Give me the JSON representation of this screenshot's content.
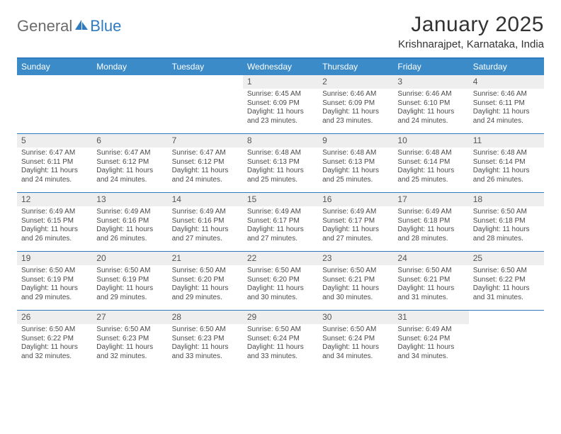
{
  "logo": {
    "part1": "General",
    "part2": "Blue"
  },
  "title": "January 2025",
  "location": "Krishnarajpet, Karnataka, India",
  "colors": {
    "header_bg": "#3b8bc9",
    "header_border": "#2f7bbf",
    "daynum_bg": "#eeeeee",
    "text": "#333333",
    "body_text": "#4a4a4a",
    "logo_gray": "#6b6b6b",
    "logo_blue": "#2f7bbf",
    "background": "#ffffff"
  },
  "day_names": [
    "Sunday",
    "Monday",
    "Tuesday",
    "Wednesday",
    "Thursday",
    "Friday",
    "Saturday"
  ],
  "weeks": [
    [
      null,
      null,
      null,
      {
        "n": "1",
        "sr": "Sunrise: 6:45 AM",
        "ss": "Sunset: 6:09 PM",
        "dl": "Daylight: 11 hours and 23 minutes."
      },
      {
        "n": "2",
        "sr": "Sunrise: 6:46 AM",
        "ss": "Sunset: 6:09 PM",
        "dl": "Daylight: 11 hours and 23 minutes."
      },
      {
        "n": "3",
        "sr": "Sunrise: 6:46 AM",
        "ss": "Sunset: 6:10 PM",
        "dl": "Daylight: 11 hours and 24 minutes."
      },
      {
        "n": "4",
        "sr": "Sunrise: 6:46 AM",
        "ss": "Sunset: 6:11 PM",
        "dl": "Daylight: 11 hours and 24 minutes."
      }
    ],
    [
      {
        "n": "5",
        "sr": "Sunrise: 6:47 AM",
        "ss": "Sunset: 6:11 PM",
        "dl": "Daylight: 11 hours and 24 minutes."
      },
      {
        "n": "6",
        "sr": "Sunrise: 6:47 AM",
        "ss": "Sunset: 6:12 PM",
        "dl": "Daylight: 11 hours and 24 minutes."
      },
      {
        "n": "7",
        "sr": "Sunrise: 6:47 AM",
        "ss": "Sunset: 6:12 PM",
        "dl": "Daylight: 11 hours and 24 minutes."
      },
      {
        "n": "8",
        "sr": "Sunrise: 6:48 AM",
        "ss": "Sunset: 6:13 PM",
        "dl": "Daylight: 11 hours and 25 minutes."
      },
      {
        "n": "9",
        "sr": "Sunrise: 6:48 AM",
        "ss": "Sunset: 6:13 PM",
        "dl": "Daylight: 11 hours and 25 minutes."
      },
      {
        "n": "10",
        "sr": "Sunrise: 6:48 AM",
        "ss": "Sunset: 6:14 PM",
        "dl": "Daylight: 11 hours and 25 minutes."
      },
      {
        "n": "11",
        "sr": "Sunrise: 6:48 AM",
        "ss": "Sunset: 6:14 PM",
        "dl": "Daylight: 11 hours and 26 minutes."
      }
    ],
    [
      {
        "n": "12",
        "sr": "Sunrise: 6:49 AM",
        "ss": "Sunset: 6:15 PM",
        "dl": "Daylight: 11 hours and 26 minutes."
      },
      {
        "n": "13",
        "sr": "Sunrise: 6:49 AM",
        "ss": "Sunset: 6:16 PM",
        "dl": "Daylight: 11 hours and 26 minutes."
      },
      {
        "n": "14",
        "sr": "Sunrise: 6:49 AM",
        "ss": "Sunset: 6:16 PM",
        "dl": "Daylight: 11 hours and 27 minutes."
      },
      {
        "n": "15",
        "sr": "Sunrise: 6:49 AM",
        "ss": "Sunset: 6:17 PM",
        "dl": "Daylight: 11 hours and 27 minutes."
      },
      {
        "n": "16",
        "sr": "Sunrise: 6:49 AM",
        "ss": "Sunset: 6:17 PM",
        "dl": "Daylight: 11 hours and 27 minutes."
      },
      {
        "n": "17",
        "sr": "Sunrise: 6:49 AM",
        "ss": "Sunset: 6:18 PM",
        "dl": "Daylight: 11 hours and 28 minutes."
      },
      {
        "n": "18",
        "sr": "Sunrise: 6:50 AM",
        "ss": "Sunset: 6:18 PM",
        "dl": "Daylight: 11 hours and 28 minutes."
      }
    ],
    [
      {
        "n": "19",
        "sr": "Sunrise: 6:50 AM",
        "ss": "Sunset: 6:19 PM",
        "dl": "Daylight: 11 hours and 29 minutes."
      },
      {
        "n": "20",
        "sr": "Sunrise: 6:50 AM",
        "ss": "Sunset: 6:19 PM",
        "dl": "Daylight: 11 hours and 29 minutes."
      },
      {
        "n": "21",
        "sr": "Sunrise: 6:50 AM",
        "ss": "Sunset: 6:20 PM",
        "dl": "Daylight: 11 hours and 29 minutes."
      },
      {
        "n": "22",
        "sr": "Sunrise: 6:50 AM",
        "ss": "Sunset: 6:20 PM",
        "dl": "Daylight: 11 hours and 30 minutes."
      },
      {
        "n": "23",
        "sr": "Sunrise: 6:50 AM",
        "ss": "Sunset: 6:21 PM",
        "dl": "Daylight: 11 hours and 30 minutes."
      },
      {
        "n": "24",
        "sr": "Sunrise: 6:50 AM",
        "ss": "Sunset: 6:21 PM",
        "dl": "Daylight: 11 hours and 31 minutes."
      },
      {
        "n": "25",
        "sr": "Sunrise: 6:50 AM",
        "ss": "Sunset: 6:22 PM",
        "dl": "Daylight: 11 hours and 31 minutes."
      }
    ],
    [
      {
        "n": "26",
        "sr": "Sunrise: 6:50 AM",
        "ss": "Sunset: 6:22 PM",
        "dl": "Daylight: 11 hours and 32 minutes."
      },
      {
        "n": "27",
        "sr": "Sunrise: 6:50 AM",
        "ss": "Sunset: 6:23 PM",
        "dl": "Daylight: 11 hours and 32 minutes."
      },
      {
        "n": "28",
        "sr": "Sunrise: 6:50 AM",
        "ss": "Sunset: 6:23 PM",
        "dl": "Daylight: 11 hours and 33 minutes."
      },
      {
        "n": "29",
        "sr": "Sunrise: 6:50 AM",
        "ss": "Sunset: 6:24 PM",
        "dl": "Daylight: 11 hours and 33 minutes."
      },
      {
        "n": "30",
        "sr": "Sunrise: 6:50 AM",
        "ss": "Sunset: 6:24 PM",
        "dl": "Daylight: 11 hours and 34 minutes."
      },
      {
        "n": "31",
        "sr": "Sunrise: 6:49 AM",
        "ss": "Sunset: 6:24 PM",
        "dl": "Daylight: 11 hours and 34 minutes."
      },
      null
    ]
  ]
}
